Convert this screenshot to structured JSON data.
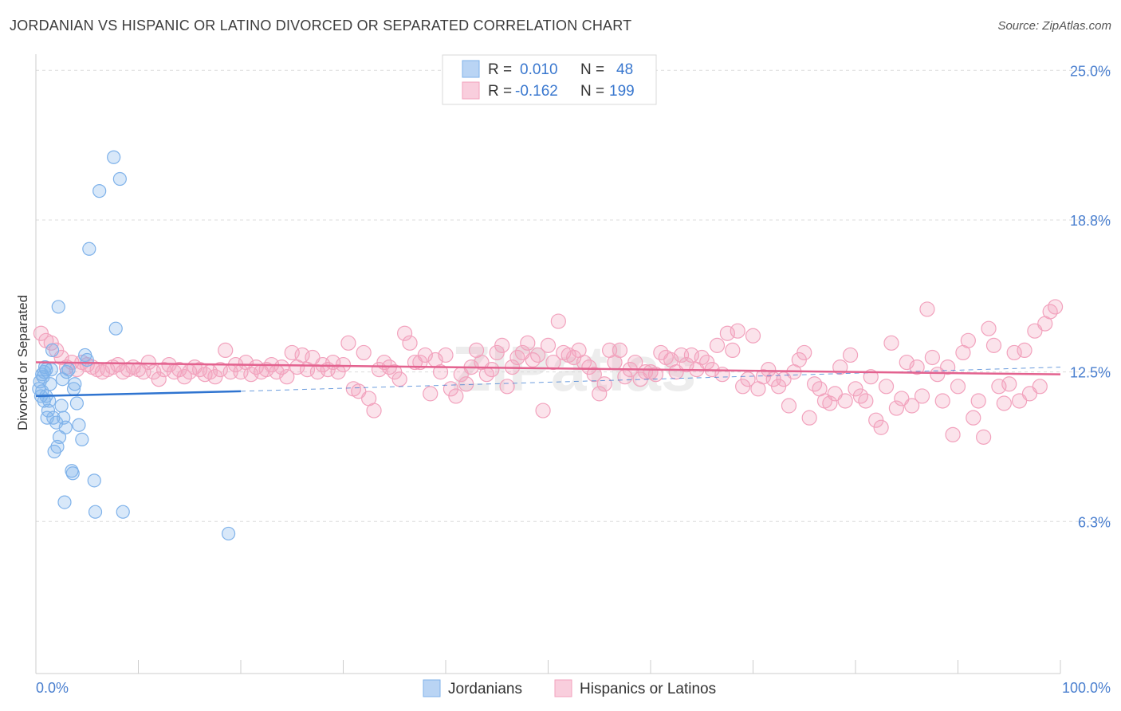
{
  "title": "JORDANIAN VS HISPANIC OR LATINO DIVORCED OR SEPARATED CORRELATION CHART",
  "source": "Source: ZipAtlas.com",
  "colors": {
    "blue": "#7fb2ea",
    "blue_line": "#2f74d0",
    "pink": "#f2a2bd",
    "pink_line": "#e3628f",
    "tick": "#4a7fcf"
  },
  "legend": {
    "rows": [
      {
        "r_label": "R =",
        "r_value": "0.010",
        "n_label": "N =",
        "n_value": "48"
      },
      {
        "r_label": "R =",
        "r_value": "-0.162",
        "n_label": "N =",
        "n_value": "199"
      }
    ]
  },
  "chart_data": {
    "type": "scatter",
    "xlabel": "",
    "ylabel": "Divorced or Separated",
    "xlim": [
      0,
      100
    ],
    "ylim": [
      0,
      26.1
    ],
    "x_tick_labels": [
      "0.0%",
      "100.0%"
    ],
    "y_ticks": [
      6.3,
      12.5,
      18.8,
      25.0
    ],
    "y_tick_labels": [
      "6.3%",
      "12.5%",
      "18.8%",
      "25.0%"
    ],
    "grid": true,
    "series": [
      {
        "name": "Jordanians",
        "r": 0.01,
        "n": 48,
        "trend": {
          "x": [
            0,
            20
          ],
          "y": [
            11.5,
            11.7
          ],
          "dashed_to": [
            100,
            12.7
          ]
        },
        "points": [
          [
            0.3,
            11.8
          ],
          [
            0.4,
            12.1
          ],
          [
            0.5,
            11.5
          ],
          [
            0.6,
            11.7
          ],
          [
            0.7,
            12.3
          ],
          [
            0.8,
            11.3
          ],
          [
            0.9,
            12.7
          ],
          [
            1.0,
            11.5
          ],
          [
            1.1,
            10.6
          ],
          [
            1.2,
            10.9
          ],
          [
            1.3,
            11.3
          ],
          [
            1.4,
            12.0
          ],
          [
            1.5,
            12.6
          ],
          [
            1.6,
            13.4
          ],
          [
            1.7,
            10.6
          ],
          [
            1.8,
            9.2
          ],
          [
            2.0,
            10.4
          ],
          [
            2.1,
            9.4
          ],
          [
            2.2,
            15.2
          ],
          [
            2.3,
            9.8
          ],
          [
            2.5,
            11.1
          ],
          [
            2.6,
            12.2
          ],
          [
            2.7,
            10.6
          ],
          [
            2.8,
            7.1
          ],
          [
            2.9,
            10.2
          ],
          [
            3.0,
            12.5
          ],
          [
            3.2,
            12.6
          ],
          [
            3.5,
            8.4
          ],
          [
            3.6,
            8.3
          ],
          [
            3.7,
            11.8
          ],
          [
            3.8,
            12.0
          ],
          [
            4.0,
            11.2
          ],
          [
            4.2,
            10.3
          ],
          [
            4.5,
            9.7
          ],
          [
            4.8,
            13.2
          ],
          [
            5.0,
            13.0
          ],
          [
            5.2,
            17.6
          ],
          [
            5.7,
            8.0
          ],
          [
            5.8,
            6.7
          ],
          [
            6.2,
            20.0
          ],
          [
            7.6,
            21.4
          ],
          [
            7.8,
            14.3
          ],
          [
            8.2,
            20.5
          ],
          [
            8.5,
            6.7
          ],
          [
            18.8,
            5.8
          ],
          [
            0.6,
            12.4
          ],
          [
            1.0,
            12.6
          ],
          [
            0.8,
            12.5
          ]
        ]
      },
      {
        "name": "Hispanics or Latinos",
        "r": -0.162,
        "n": 199,
        "trend": {
          "x": [
            0,
            100
          ],
          "y": [
            12.9,
            12.4
          ]
        },
        "points": [
          [
            0.5,
            14.1
          ],
          [
            1.0,
            13.8
          ],
          [
            1.5,
            13.7
          ],
          [
            2.0,
            13.4
          ],
          [
            2.5,
            13.1
          ],
          [
            3.0,
            12.7
          ],
          [
            3.5,
            12.9
          ],
          [
            4.0,
            12.6
          ],
          [
            4.5,
            12.9
          ],
          [
            5.0,
            12.8
          ],
          [
            5.5,
            12.7
          ],
          [
            6.0,
            12.6
          ],
          [
            6.5,
            12.5
          ],
          [
            7.0,
            12.6
          ],
          [
            7.5,
            12.7
          ],
          [
            8.0,
            12.8
          ],
          [
            8.5,
            12.5
          ],
          [
            9.0,
            12.6
          ],
          [
            9.5,
            12.7
          ],
          [
            10.0,
            12.6
          ],
          [
            10.5,
            12.5
          ],
          [
            11.0,
            12.9
          ],
          [
            11.5,
            12.5
          ],
          [
            12.0,
            12.2
          ],
          [
            12.5,
            12.6
          ],
          [
            13.0,
            12.8
          ],
          [
            13.5,
            12.5
          ],
          [
            14.0,
            12.6
          ],
          [
            14.5,
            12.3
          ],
          [
            15.0,
            12.5
          ],
          [
            15.5,
            12.7
          ],
          [
            16.0,
            12.6
          ],
          [
            16.5,
            12.4
          ],
          [
            17.0,
            12.5
          ],
          [
            17.5,
            12.3
          ],
          [
            18.0,
            12.6
          ],
          [
            18.5,
            13.4
          ],
          [
            19.0,
            12.5
          ],
          [
            19.5,
            12.8
          ],
          [
            20.0,
            12.5
          ],
          [
            20.5,
            12.9
          ],
          [
            21.0,
            12.4
          ],
          [
            21.5,
            12.7
          ],
          [
            22.0,
            12.5
          ],
          [
            22.5,
            12.6
          ],
          [
            23.0,
            12.8
          ],
          [
            23.5,
            12.5
          ],
          [
            24.0,
            12.7
          ],
          [
            24.5,
            12.3
          ],
          [
            25.0,
            13.3
          ],
          [
            25.5,
            12.7
          ],
          [
            26.0,
            13.2
          ],
          [
            26.5,
            12.6
          ],
          [
            27.0,
            13.1
          ],
          [
            27.5,
            12.5
          ],
          [
            28.0,
            12.8
          ],
          [
            28.5,
            12.6
          ],
          [
            29.0,
            12.9
          ],
          [
            29.5,
            12.5
          ],
          [
            30.0,
            12.8
          ],
          [
            30.5,
            13.7
          ],
          [
            31.0,
            11.8
          ],
          [
            31.5,
            11.7
          ],
          [
            32.0,
            13.3
          ],
          [
            32.5,
            11.4
          ],
          [
            33.0,
            10.9
          ],
          [
            33.5,
            12.6
          ],
          [
            34.0,
            12.9
          ],
          [
            34.5,
            12.7
          ],
          [
            35.0,
            12.5
          ],
          [
            35.5,
            12.2
          ],
          [
            36.0,
            14.1
          ],
          [
            36.5,
            13.7
          ],
          [
            37.0,
            12.9
          ],
          [
            37.5,
            12.9
          ],
          [
            38.0,
            13.2
          ],
          [
            38.5,
            11.6
          ],
          [
            39.0,
            13.0
          ],
          [
            39.5,
            12.5
          ],
          [
            40.0,
            13.2
          ],
          [
            40.5,
            11.8
          ],
          [
            41.0,
            11.5
          ],
          [
            41.5,
            12.4
          ],
          [
            42.0,
            12.0
          ],
          [
            42.5,
            12.7
          ],
          [
            43.0,
            13.4
          ],
          [
            43.5,
            12.9
          ],
          [
            44.0,
            12.4
          ],
          [
            44.5,
            12.6
          ],
          [
            45.0,
            13.3
          ],
          [
            45.5,
            13.6
          ],
          [
            46.0,
            11.9
          ],
          [
            46.5,
            12.7
          ],
          [
            47.0,
            13.1
          ],
          [
            47.5,
            13.3
          ],
          [
            48.0,
            13.7
          ],
          [
            48.5,
            13.0
          ],
          [
            49.0,
            13.2
          ],
          [
            49.5,
            10.9
          ],
          [
            50.0,
            13.6
          ],
          [
            50.5,
            12.9
          ],
          [
            51.0,
            14.6
          ],
          [
            51.5,
            13.3
          ],
          [
            52.0,
            13.2
          ],
          [
            52.5,
            13.1
          ],
          [
            53.0,
            13.4
          ],
          [
            53.5,
            12.9
          ],
          [
            54.0,
            12.7
          ],
          [
            54.5,
            12.4
          ],
          [
            55.0,
            11.6
          ],
          [
            55.5,
            12.0
          ],
          [
            56.0,
            13.4
          ],
          [
            56.5,
            12.9
          ],
          [
            57.0,
            13.4
          ],
          [
            57.5,
            12.3
          ],
          [
            58.0,
            12.6
          ],
          [
            58.5,
            12.9
          ],
          [
            59.0,
            12.2
          ],
          [
            59.5,
            12.5
          ],
          [
            60.0,
            12.5
          ],
          [
            60.5,
            12.4
          ],
          [
            61.0,
            13.3
          ],
          [
            61.5,
            13.1
          ],
          [
            62.0,
            13.0
          ],
          [
            62.5,
            12.5
          ],
          [
            63.0,
            13.2
          ],
          [
            63.5,
            12.8
          ],
          [
            64.0,
            13.2
          ],
          [
            64.5,
            12.6
          ],
          [
            65.0,
            13.1
          ],
          [
            65.5,
            12.9
          ],
          [
            66.0,
            12.6
          ],
          [
            66.5,
            13.6
          ],
          [
            67.0,
            12.4
          ],
          [
            67.5,
            14.1
          ],
          [
            68.0,
            13.4
          ],
          [
            68.5,
            14.2
          ],
          [
            69.0,
            11.9
          ],
          [
            69.5,
            12.2
          ],
          [
            70.0,
            14.0
          ],
          [
            70.5,
            11.8
          ],
          [
            71.0,
            12.3
          ],
          [
            71.5,
            12.6
          ],
          [
            72.0,
            12.2
          ],
          [
            72.5,
            11.9
          ],
          [
            73.0,
            12.2
          ],
          [
            73.5,
            11.1
          ],
          [
            74.0,
            12.5
          ],
          [
            74.5,
            13.0
          ],
          [
            75.0,
            13.3
          ],
          [
            75.5,
            10.6
          ],
          [
            76.0,
            12.0
          ],
          [
            76.5,
            11.8
          ],
          [
            77.0,
            11.3
          ],
          [
            77.5,
            11.2
          ],
          [
            78.0,
            11.6
          ],
          [
            78.5,
            12.7
          ],
          [
            79.0,
            11.3
          ],
          [
            79.5,
            13.2
          ],
          [
            80.0,
            11.8
          ],
          [
            80.5,
            11.5
          ],
          [
            81.0,
            11.3
          ],
          [
            81.5,
            12.3
          ],
          [
            82.0,
            10.5
          ],
          [
            82.5,
            10.2
          ],
          [
            83.0,
            11.9
          ],
          [
            83.5,
            13.7
          ],
          [
            84.0,
            11.0
          ],
          [
            84.5,
            11.4
          ],
          [
            85.0,
            12.9
          ],
          [
            85.5,
            11.1
          ],
          [
            86.0,
            12.7
          ],
          [
            86.5,
            11.5
          ],
          [
            87.0,
            15.1
          ],
          [
            87.5,
            13.1
          ],
          [
            88.0,
            12.4
          ],
          [
            88.5,
            11.3
          ],
          [
            89.0,
            12.7
          ],
          [
            89.5,
            9.9
          ],
          [
            90.0,
            11.9
          ],
          [
            90.5,
            13.3
          ],
          [
            91.0,
            13.8
          ],
          [
            91.5,
            10.6
          ],
          [
            92.0,
            11.3
          ],
          [
            92.5,
            9.8
          ],
          [
            93.0,
            14.3
          ],
          [
            93.5,
            13.6
          ],
          [
            94.0,
            11.9
          ],
          [
            94.5,
            11.2
          ],
          [
            95.0,
            12.0
          ],
          [
            95.5,
            13.3
          ],
          [
            96.0,
            11.3
          ],
          [
            96.5,
            13.4
          ],
          [
            97.0,
            11.6
          ],
          [
            97.5,
            14.2
          ],
          [
            98.0,
            11.9
          ],
          [
            98.5,
            14.5
          ],
          [
            99.0,
            15.0
          ],
          [
            99.5,
            15.2
          ]
        ]
      }
    ]
  },
  "bottom_legend": [
    "Jordanians",
    "Hispanics or Latinos"
  ],
  "watermark": "ZIPatlas"
}
